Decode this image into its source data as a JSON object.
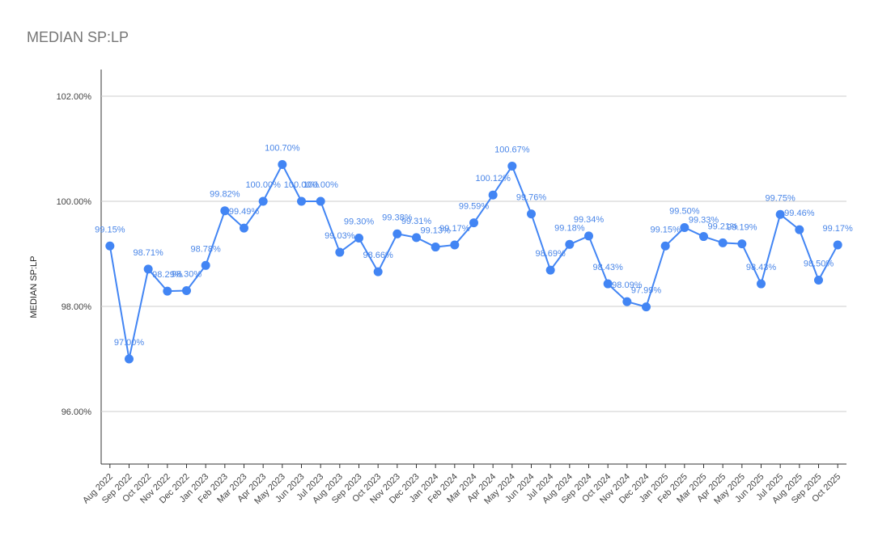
{
  "chart_data": {
    "type": "line",
    "title": "MEDIAN SP:LP",
    "y_label": "MEDIAN SP:LP",
    "categories": [
      "Aug 2022",
      "Sep 2022",
      "Oct 2022",
      "Nov 2022",
      "Dec 2022",
      "Jan 2023",
      "Feb 2023",
      "Mar 2023",
      "Apr 2023",
      "May 2023",
      "Jun 2023",
      "Jul 2023",
      "Aug 2023",
      "Sep 2023",
      "Oct 2023",
      "Nov 2023",
      "Dec 2023",
      "Jan 2024",
      "Feb 2024",
      "Mar 2024",
      "Apr 2024",
      "May 2024",
      "Jun 2024",
      "Jul 2024",
      "Aug 2024",
      "Sep 2024",
      "Oct 2024",
      "Nov 2024",
      "Dec 2024",
      "Jan 2025",
      "Feb 2025",
      "Mar 2025",
      "Apr 2025",
      "May 2025",
      "Jun 2025",
      "Jul 2025",
      "Aug 2025",
      "Sep 2025",
      "Oct 2025"
    ],
    "series": [
      {
        "name": "MEDIAN SP:LP",
        "color": "#4285f4",
        "values": [
          99.15,
          97.0,
          98.71,
          98.29,
          98.3,
          98.78,
          99.82,
          99.49,
          100.0,
          100.7,
          100.0,
          100.0,
          99.03,
          99.3,
          98.66,
          99.38,
          99.31,
          99.13,
          99.17,
          99.59,
          100.12,
          100.67,
          99.76,
          98.69,
          99.18,
          99.34,
          98.43,
          98.09,
          97.99,
          99.15,
          99.5,
          99.33,
          99.21,
          99.19,
          98.43,
          99.75,
          99.46,
          98.5,
          99.17
        ],
        "value_labels": [
          "99.15%",
          "97.00%",
          "98.71%",
          "98.29%",
          "98.30%",
          "98.78%",
          "99.82%",
          "99.49%",
          "100.00%",
          "100.70%",
          "100.00%",
          "100.00%",
          "99.03%",
          "99.30%",
          "98.66%",
          "99.38%",
          "99.31%",
          "99.13%",
          "99.17%",
          "99.59%",
          "100.12%",
          "100.67%",
          "99.76%",
          "98.69%",
          "99.18%",
          "99.34%",
          "98.43%",
          "98.09%",
          "97.99%",
          "99.15%",
          "99.50%",
          "99.33%",
          "99.21%",
          "99.19%",
          "98.43%",
          "99.75%",
          "99.46%",
          "98.50%",
          "99.17%"
        ]
      }
    ],
    "ylim": [
      95,
      102.5
    ],
    "yticks": [
      {
        "value": 96,
        "label": "96.00%"
      },
      {
        "value": 98,
        "label": "98.00%"
      },
      {
        "value": 100,
        "label": "100.00%"
      },
      {
        "value": 102,
        "label": "102.00%"
      }
    ],
    "grid": true
  }
}
